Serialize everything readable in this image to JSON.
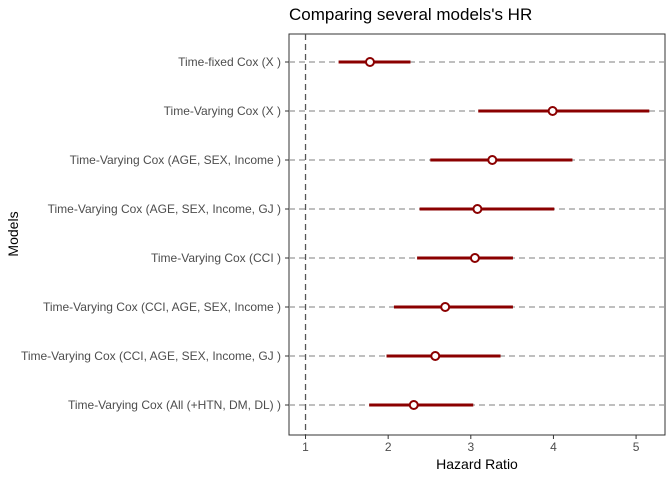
{
  "chart_data": {
    "type": "forest",
    "title": "Comparing several models's HR",
    "xlabel": "Hazard Ratio",
    "ylabel": "Models",
    "xlim": [
      0.8,
      5.35
    ],
    "xticks": [
      1,
      2,
      3,
      4,
      5
    ],
    "reference_line": 1,
    "grid": "dashed horizontal guide per model",
    "colors": {
      "ci_line": "#8b0000",
      "point_fill": "#ffffff",
      "point_stroke": "#8b0000",
      "guide": "#999999",
      "ref_line": "#555555"
    },
    "models": [
      {
        "label": "Time-fixed Cox (X )",
        "hr": 1.78,
        "lower": 1.4,
        "upper": 2.27
      },
      {
        "label": "Time-Varying Cox (X )",
        "hr": 3.99,
        "lower": 3.09,
        "upper": 5.16
      },
      {
        "label": "Time-Varying Cox (AGE, SEX, Income )",
        "hr": 3.26,
        "lower": 2.51,
        "upper": 4.23
      },
      {
        "label": "Time-Varying Cox (AGE, SEX, Income, GJ )",
        "hr": 3.08,
        "lower": 2.38,
        "upper": 4.01
      },
      {
        "label": "Time-Varying Cox (CCI )",
        "hr": 3.05,
        "lower": 2.35,
        "upper": 3.51
      },
      {
        "label": "Time-Varying Cox (CCI, AGE, SEX, Income )",
        "hr": 2.69,
        "lower": 2.07,
        "upper": 3.51
      },
      {
        "label": "Time-Varying Cox (CCI, AGE, SEX, Income, GJ )",
        "hr": 2.57,
        "lower": 1.98,
        "upper": 3.36
      },
      {
        "label": "Time-Varying Cox (All (+HTN, DM, DL) )",
        "hr": 2.31,
        "lower": 1.77,
        "upper": 3.03
      }
    ]
  }
}
